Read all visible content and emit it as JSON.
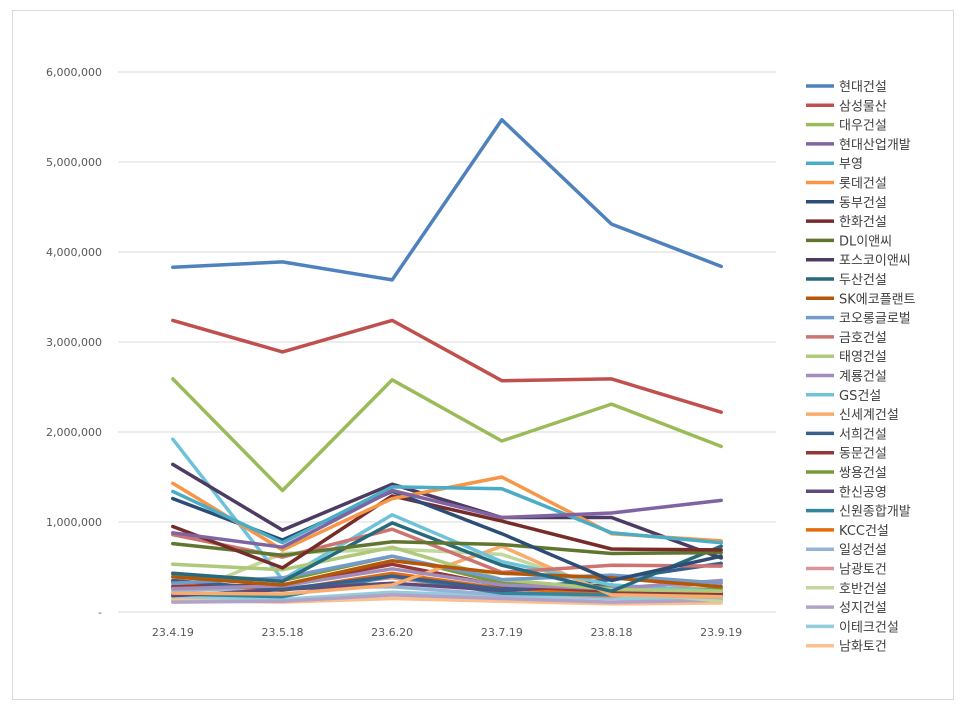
{
  "chart_data": {
    "type": "line",
    "title": "",
    "xlabel": "",
    "ylabel": "",
    "categories": [
      "23.4.19",
      "23.5.18",
      "23.6.20",
      "23.7.19",
      "23.8.18",
      "23.9.19"
    ],
    "ylim": [
      0,
      6000000
    ],
    "yticks": [
      0,
      1000000,
      2000000,
      3000000,
      4000000,
      5000000,
      6000000
    ],
    "ytick_labels": [
      "-",
      "1,000,000",
      "2,000,000",
      "3,000,000",
      "4,000,000",
      "5,000,000",
      "6,000,000"
    ],
    "grid": "horizontal",
    "legend_position": "right",
    "series": [
      {
        "name": "현대건설",
        "color": "#4F81BD",
        "values": [
          3830000,
          3890000,
          3690000,
          5470000,
          4310000,
          3840000
        ]
      },
      {
        "name": "삼성물산",
        "color": "#C0504D",
        "values": [
          3240000,
          2890000,
          3240000,
          2570000,
          2590000,
          2220000
        ]
      },
      {
        "name": "대우건설",
        "color": "#9BBB59",
        "values": [
          2590000,
          1350000,
          2580000,
          1900000,
          2310000,
          1840000
        ]
      },
      {
        "name": "현대산업개발",
        "color": "#8064A2",
        "values": [
          880000,
          720000,
          1350000,
          1050000,
          1100000,
          1240000
        ]
      },
      {
        "name": "부영",
        "color": "#4BACC6",
        "values": [
          1340000,
          770000,
          1390000,
          1370000,
          880000,
          770000
        ]
      },
      {
        "name": "롯데건설",
        "color": "#F79646",
        "values": [
          1430000,
          690000,
          1260000,
          1500000,
          870000,
          790000
        ]
      },
      {
        "name": "동부건설",
        "color": "#2C4D75",
        "values": [
          1260000,
          800000,
          1340000,
          870000,
          350000,
          620000
        ]
      },
      {
        "name": "한화건설",
        "color": "#772C2A",
        "values": [
          950000,
          490000,
          1290000,
          1010000,
          700000,
          690000
        ]
      },
      {
        "name": "DL이앤씨",
        "color": "#5F7530",
        "values": [
          760000,
          630000,
          780000,
          750000,
          650000,
          660000
        ]
      },
      {
        "name": "포스코이앤씨",
        "color": "#4D3B62",
        "values": [
          1640000,
          910000,
          1420000,
          1050000,
          1050000,
          600000
        ]
      },
      {
        "name": "두산건설",
        "color": "#276A7C",
        "values": [
          430000,
          340000,
          990000,
          520000,
          230000,
          730000
        ]
      },
      {
        "name": "SK에코플랜트",
        "color": "#B65708",
        "values": [
          390000,
          300000,
          570000,
          430000,
          380000,
          280000
        ]
      },
      {
        "name": "코오롱글로벌",
        "color": "#729ACA",
        "values": [
          320000,
          380000,
          620000,
          360000,
          410000,
          320000
        ]
      },
      {
        "name": "금호건설",
        "color": "#CD7371",
        "values": [
          860000,
          610000,
          920000,
          440000,
          520000,
          510000
        ]
      },
      {
        "name": "태영건설",
        "color": "#AFC97A",
        "values": [
          530000,
          470000,
          720000,
          360000,
          250000,
          230000
        ]
      },
      {
        "name": "계룡건설",
        "color": "#A18CBB",
        "values": [
          260000,
          290000,
          480000,
          300000,
          260000,
          350000
        ]
      },
      {
        "name": "GS건설",
        "color": "#6EC3D8",
        "values": [
          1920000,
          360000,
          1080000,
          560000,
          300000,
          230000
        ]
      },
      {
        "name": "신세계건설",
        "color": "#F9AC6C",
        "values": [
          210000,
          200000,
          300000,
          730000,
          190000,
          170000
        ]
      },
      {
        "name": "서희건설",
        "color": "#3A5F8B",
        "values": [
          350000,
          250000,
          400000,
          250000,
          360000,
          540000
        ]
      },
      {
        "name": "동문건설",
        "color": "#953735",
        "values": [
          280000,
          300000,
          530000,
          290000,
          230000,
          210000
        ]
      },
      {
        "name": "쌍용건설",
        "color": "#779A3C",
        "values": [
          420000,
          350000,
          620000,
          320000,
          270000,
          250000
        ]
      },
      {
        "name": "한신공영",
        "color": "#604A7B",
        "values": [
          180000,
          250000,
          320000,
          240000,
          300000,
          200000
        ]
      },
      {
        "name": "신원종합개발",
        "color": "#31859C",
        "values": [
          200000,
          170000,
          400000,
          210000,
          190000,
          220000
        ]
      },
      {
        "name": "KCC건설",
        "color": "#E46C0A",
        "values": [
          330000,
          240000,
          430000,
          260000,
          210000,
          180000
        ]
      },
      {
        "name": "일성건설",
        "color": "#95B3D7",
        "values": [
          240000,
          270000,
          280000,
          190000,
          200000,
          160000
        ]
      },
      {
        "name": "남광토건",
        "color": "#D99694",
        "values": [
          300000,
          260000,
          380000,
          220000,
          170000,
          350000
        ]
      },
      {
        "name": "호반건설",
        "color": "#C3D69B",
        "values": [
          150000,
          650000,
          700000,
          640000,
          240000,
          120000
        ]
      },
      {
        "name": "성지건설",
        "color": "#B3A2C7",
        "values": [
          110000,
          120000,
          190000,
          150000,
          110000,
          130000
        ]
      },
      {
        "name": "이테크건설",
        "color": "#93CDDD",
        "values": [
          170000,
          140000,
          220000,
          180000,
          150000,
          140000
        ]
      },
      {
        "name": "남화토건",
        "color": "#FAC090",
        "values": [
          130000,
          110000,
          150000,
          120000,
          90000,
          100000
        ]
      }
    ]
  }
}
